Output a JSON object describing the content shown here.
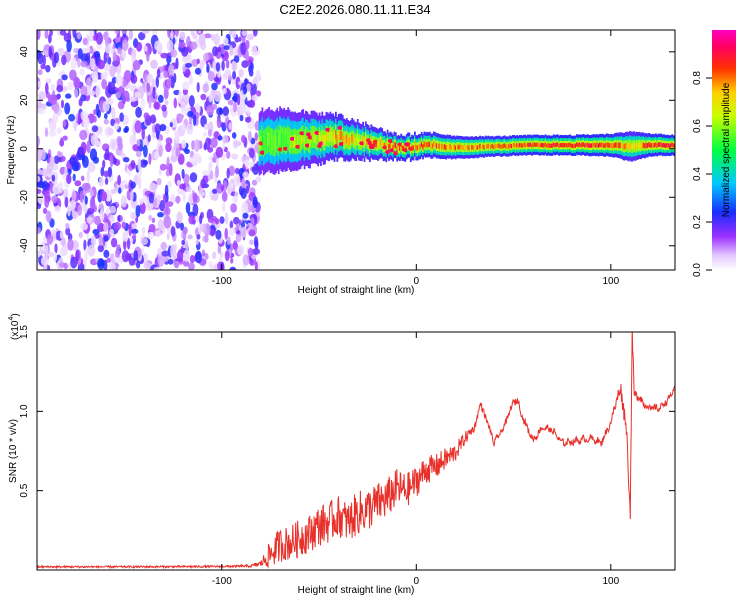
{
  "figure_title": "C2E2.2026.080.11.11.E34",
  "chart_data": [
    {
      "type": "heatmap",
      "title": "C2E2.2026.080.11.11.E34",
      "xlabel": "Height of straight line (km)",
      "ylabel": "Frequency (Hz)",
      "xlim": [
        -195,
        133
      ],
      "ylim": [
        -50,
        49
      ],
      "xticks": [
        -100,
        0,
        100
      ],
      "xtick_labels": [
        "-100",
        "0",
        "100"
      ],
      "yticks": [
        -40,
        -20,
        0,
        20,
        40
      ],
      "ytick_labels": [
        "-40",
        "-20",
        "0",
        "20",
        "40"
      ],
      "noise_region_x": [
        -195,
        -81
      ],
      "ridge": {
        "x": [
          -81,
          -70,
          -60,
          -50,
          -40,
          -30,
          -20,
          -10,
          0,
          10,
          20,
          40,
          60,
          80,
          100,
          110,
          120,
          133
        ],
        "center": [
          3,
          3.5,
          4,
          4,
          5,
          3.5,
          2,
          0.5,
          1,
          1,
          0.5,
          1,
          1.5,
          1.5,
          1.5,
          1,
          1.5,
          1.5
        ],
        "width": [
          5,
          5,
          4.5,
          4,
          3.5,
          3,
          2.5,
          2,
          2,
          2,
          1.8,
          1.6,
          1.6,
          1.6,
          1.8,
          2.4,
          1.8,
          1.6
        ],
        "peak": [
          0.55,
          0.6,
          0.62,
          0.65,
          0.75,
          0.7,
          0.75,
          0.8,
          0.82,
          0.8,
          0.78,
          0.8,
          0.85,
          0.88,
          0.85,
          0.7,
          0.85,
          0.88
        ]
      },
      "colorbar": {
        "label": "Normalized spectral amplitude",
        "range": [
          0,
          1
        ],
        "ticks": [
          0.0,
          0.2,
          0.4,
          0.6,
          0.8
        ],
        "tick_labels": [
          "0.0",
          "0.2",
          "0.4",
          "0.6",
          "0.8"
        ],
        "colormap": "rainbow (white → violet → blue → cyan → green → yellow → red → magenta)"
      }
    },
    {
      "type": "line",
      "xlabel": "Height of straight line (km)",
      "ylabel": "SNR (10 * v/v)",
      "scale_label": "(x10",
      "scale_exponent": "4",
      "xlim": [
        -195,
        133
      ],
      "ylim": [
        0,
        15000
      ],
      "xticks": [
        -100,
        0,
        100
      ],
      "xtick_labels": [
        "-100",
        "0",
        "100"
      ],
      "yticks": [
        5000,
        10000,
        15000
      ],
      "ytick_labels": [
        "0.5",
        "1.0",
        "1.5"
      ],
      "color": "#e8302a",
      "series": [
        {
          "name": "SNR",
          "x": [
            -195,
            -150,
            -100,
            -85,
            -80,
            -75,
            -70,
            -65,
            -60,
            -55,
            -50,
            -45,
            -40,
            -35,
            -30,
            -25,
            -20,
            -15,
            -10,
            -5,
            0,
            5,
            10,
            15,
            20,
            25,
            30,
            33,
            36,
            40,
            45,
            50,
            52,
            55,
            60,
            65,
            70,
            75,
            80,
            85,
            90,
            95,
            100,
            103,
            105,
            108,
            110,
            111,
            112,
            114,
            117,
            120,
            125,
            130,
            133
          ],
          "y": [
            200,
            200,
            220,
            250,
            400,
            1000,
            1600,
            1700,
            2000,
            2300,
            2800,
            3000,
            3400,
            3000,
            3600,
            3800,
            4200,
            4500,
            5200,
            5000,
            5600,
            6300,
            6500,
            7000,
            7400,
            8300,
            9000,
            10500,
            9500,
            8000,
            9000,
            10600,
            10700,
            9500,
            8200,
            9000,
            8800,
            8000,
            8100,
            8200,
            8300,
            8000,
            9300,
            10700,
            11500,
            9000,
            3600,
            15000,
            11000,
            11000,
            10500,
            10200,
            10200,
            10800,
            11500
          ],
          "noise_amplitude": [
            60,
            60,
            60,
            80,
            200,
            900,
            1100,
            1100,
            1200,
            1200,
            1300,
            1300,
            1300,
            1300,
            1400,
            1400,
            1300,
            1300,
            1200,
            1100,
            1000,
            900,
            800,
            700,
            600,
            400,
            250,
            200,
            200,
            200,
            200,
            200,
            200,
            200,
            200,
            200,
            200,
            200,
            200,
            200,
            200,
            200,
            200,
            400,
            500,
            600,
            400,
            400,
            400,
            300,
            250,
            200,
            200,
            200,
            200
          ]
        }
      ]
    }
  ]
}
